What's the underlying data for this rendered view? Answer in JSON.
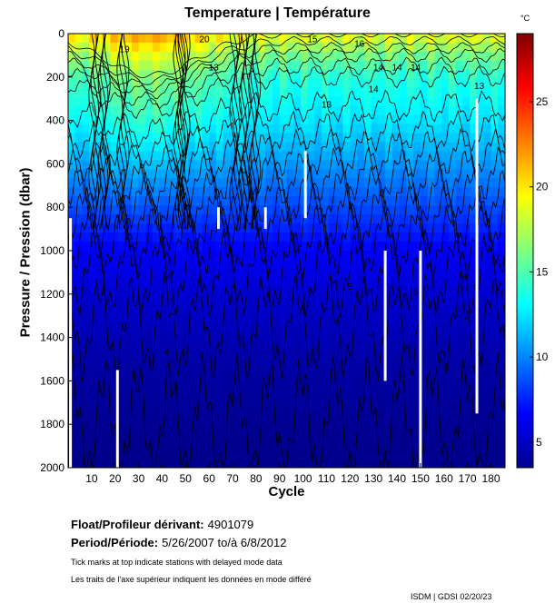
{
  "chart_data": {
    "type": "heatmap",
    "title": "Temperature | Température",
    "xlabel": "Cycle",
    "ylabel": "Pressure / Pression (dbar)",
    "xlim": [
      0,
      186
    ],
    "ylim": [
      2000,
      0
    ],
    "x_ticks": [
      10,
      20,
      30,
      40,
      50,
      60,
      70,
      80,
      90,
      100,
      110,
      120,
      130,
      140,
      150,
      160,
      170,
      180
    ],
    "y_ticks": [
      0,
      200,
      400,
      600,
      800,
      1000,
      1200,
      1400,
      1600,
      1800,
      2000
    ],
    "colorbar": {
      "unit": "°C",
      "range": [
        3.5,
        29
      ],
      "ticks": [
        5,
        10,
        15,
        20,
        25
      ],
      "colormap": "jet"
    },
    "temperature_profile": [
      {
        "pressure": 0,
        "temperature": 19
      },
      {
        "pressure": 100,
        "temperature": 16
      },
      {
        "pressure": 200,
        "temperature": 14
      },
      {
        "pressure": 400,
        "temperature": 12.5
      },
      {
        "pressure": 600,
        "temperature": 10.5
      },
      {
        "pressure": 800,
        "temperature": 8.5
      },
      {
        "pressure": 1000,
        "temperature": 6.5
      },
      {
        "pressure": 1200,
        "temperature": 5.5
      },
      {
        "pressure": 1500,
        "temperature": 4.5
      },
      {
        "pressure": 1800,
        "temperature": 4
      },
      {
        "pressure": 2000,
        "temperature": 3.8
      }
    ],
    "contour_labels": [
      {
        "cycle": 58,
        "pressure": 40,
        "text": "20"
      },
      {
        "cycle": 24,
        "pressure": 85,
        "text": "19"
      },
      {
        "cycle": 62,
        "pressure": 170,
        "text": "13"
      },
      {
        "cycle": 124,
        "pressure": 60,
        "text": "16"
      },
      {
        "cycle": 132,
        "pressure": 170,
        "text": "14"
      },
      {
        "cycle": 140,
        "pressure": 170,
        "text": "14"
      },
      {
        "cycle": 148,
        "pressure": 170,
        "text": "14"
      },
      {
        "cycle": 130,
        "pressure": 270,
        "text": "14"
      },
      {
        "cycle": 175,
        "pressure": 255,
        "text": "13"
      },
      {
        "cycle": 110,
        "pressure": 340,
        "text": "13"
      },
      {
        "cycle": 104,
        "pressure": 40,
        "text": "15"
      },
      {
        "cycle": 120,
        "pressure": 1180,
        "text": "5"
      },
      {
        "cycle": 148,
        "pressure": 1205,
        "text": "5"
      },
      {
        "cycle": 42,
        "pressure": 1480,
        "text": "4"
      }
    ],
    "missing_cycles": [
      {
        "cycle": 1,
        "pressure_from": 850,
        "pressure_to": 2000
      },
      {
        "cycle": 21,
        "pressure_from": 1550,
        "pressure_to": 2000
      },
      {
        "cycle": 64,
        "pressure_from": 800,
        "pressure_to": 900
      },
      {
        "cycle": 84,
        "pressure_from": 800,
        "pressure_to": 900
      },
      {
        "cycle": 101,
        "pressure_from": 540,
        "pressure_to": 850
      },
      {
        "cycle": 135,
        "pressure_from": 1000,
        "pressure_to": 1600
      },
      {
        "cycle": 150,
        "pressure_from": 1000,
        "pressure_to": 2000
      },
      {
        "cycle": 174,
        "pressure_from": 300,
        "pressure_to": 1750
      }
    ],
    "float_label": "Float/Profileur dérivant:",
    "float_id": "4901079",
    "period_label": "Period/Période:",
    "period_value": "5/26/2007  to/à  6/8/2012",
    "note_en": "Tick marks at top indicate stations with delayed mode data",
    "note_fr": "Les traits de l'axe supérieur indiquent les données en mode différé",
    "credit": "ISDM | GDSI  02/20/23"
  }
}
